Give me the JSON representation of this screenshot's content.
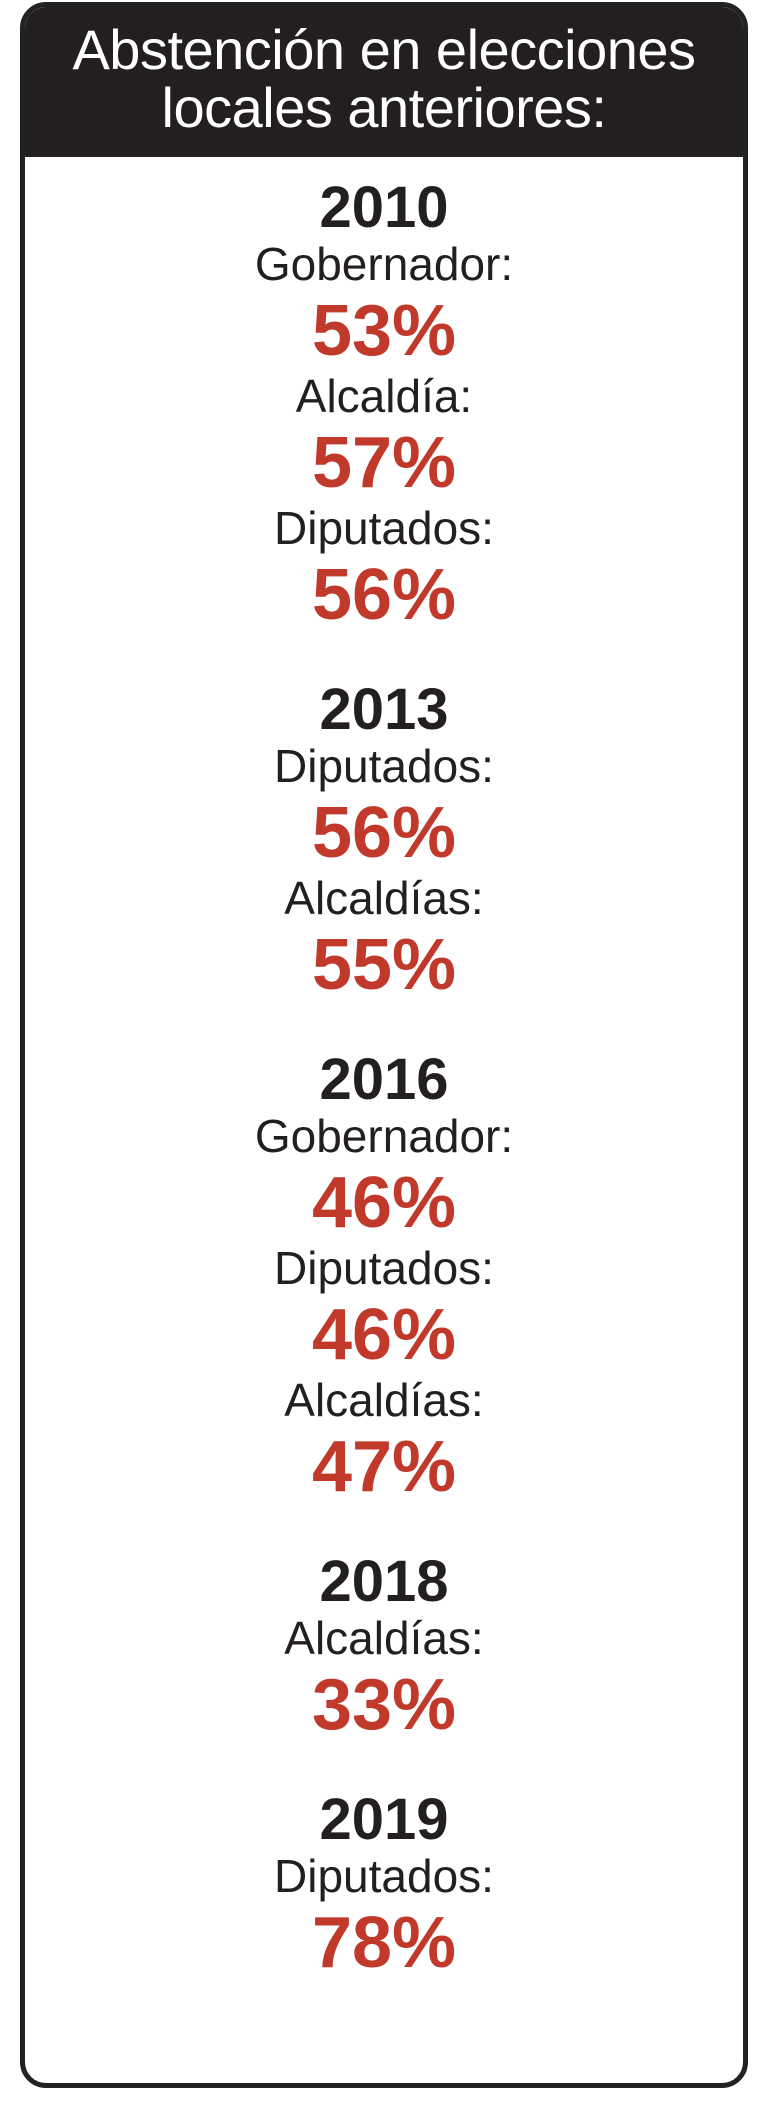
{
  "header": {
    "line1": "Abstención en elecciones",
    "line2": "locales anteriores:"
  },
  "years": [
    {
      "year": "2010",
      "entries": [
        {
          "label": "Gobernador:",
          "value": "53%"
        },
        {
          "label": "Alcaldía:",
          "value": "57%"
        },
        {
          "label": "Diputados:",
          "value": "56%"
        }
      ]
    },
    {
      "year": "2013",
      "entries": [
        {
          "label": "Diputados:",
          "value": "56%"
        },
        {
          "label": "Alcaldías:",
          "value": "55%"
        }
      ]
    },
    {
      "year": "2016",
      "entries": [
        {
          "label": "Gobernador:",
          "value": "46%"
        },
        {
          "label": "Diputados:",
          "value": "46%"
        },
        {
          "label": "Alcaldías:",
          "value": "47%"
        }
      ]
    },
    {
      "year": "2018",
      "entries": [
        {
          "label": "Alcaldías:",
          "value": "33%"
        }
      ]
    },
    {
      "year": "2019",
      "entries": [
        {
          "label": "Diputados:",
          "value": "78%"
        }
      ]
    }
  ],
  "colors": {
    "header_bg": "#231f20",
    "value_red": "#c0392b",
    "text_dark": "#231f20"
  }
}
